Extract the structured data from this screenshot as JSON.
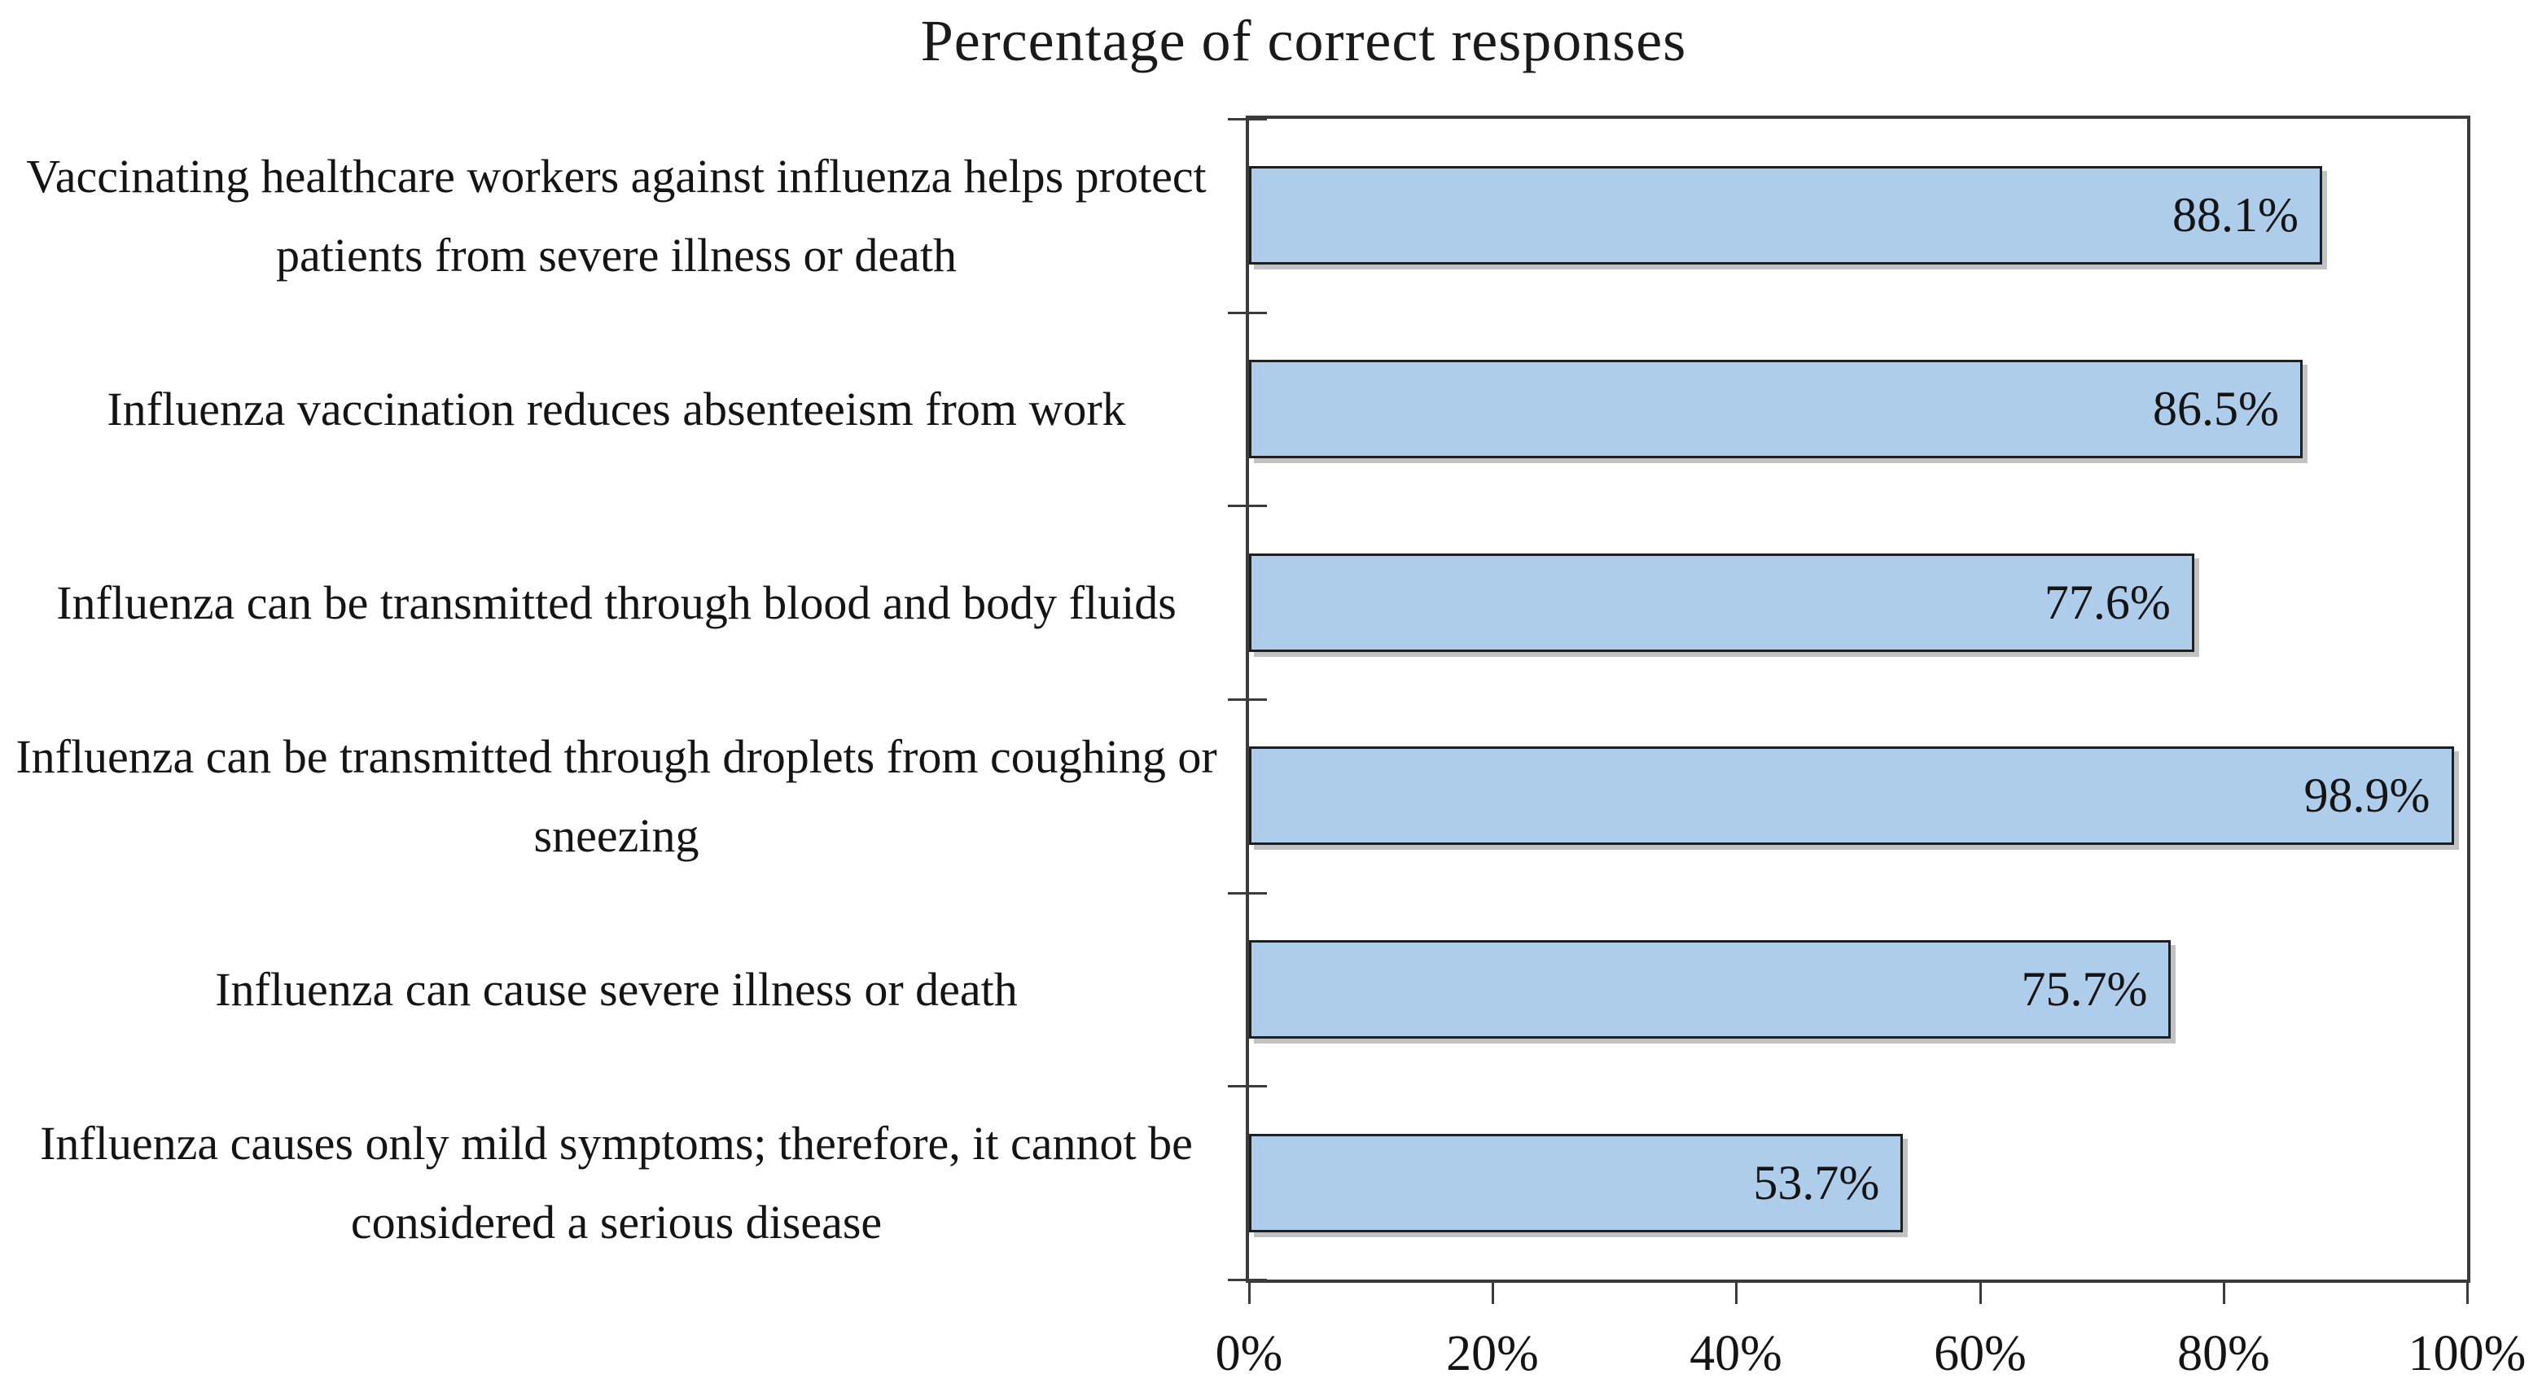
{
  "chart_data": {
    "type": "bar",
    "orientation": "horizontal",
    "title": "Percentage of correct responses",
    "categories": [
      "Vaccinating healthcare workers against influenza helps protect patients from severe illness or death",
      "Influenza vaccination reduces absenteeism from work",
      "Influenza can be transmitted through blood and body fluids",
      "Influenza can be transmitted through droplets from coughing or sneezing",
      "Influenza can cause severe illness or death",
      "Influenza causes only mild symptoms; therefore, it cannot be considered a serious disease"
    ],
    "values": [
      88.1,
      86.5,
      77.6,
      98.9,
      75.7,
      53.7
    ],
    "value_labels": [
      "88.1%",
      "86.5%",
      "77.6%",
      "98.9%",
      "75.7%",
      "53.7%"
    ],
    "x_axis": {
      "min": 0,
      "max": 100,
      "tick_labels": [
        "0%",
        "20%",
        "40%",
        "60%",
        "80%",
        "100%"
      ]
    },
    "grid": false,
    "legend": false,
    "colors": {
      "bar_fill": "#ADCDEA",
      "bar_border": "#1F1F1F",
      "axis": "#3B3B3B",
      "text": "#141414"
    }
  }
}
